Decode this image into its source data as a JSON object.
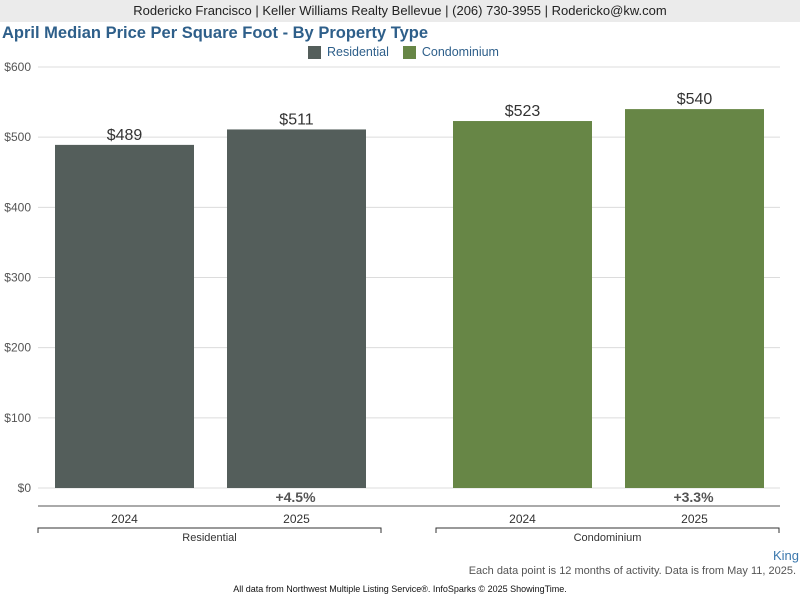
{
  "header": {
    "contact_line": "Rodericko Francisco | Keller Williams Realty Bellevue | (206) 730-3955 | Rodericko@kw.com"
  },
  "chart_data": {
    "type": "bar",
    "title": "April Median Price Per Square Foot - By Property Type",
    "ylim": [
      0,
      600
    ],
    "y_ticks": [
      0,
      100,
      200,
      300,
      400,
      500,
      600
    ],
    "y_tick_labels": [
      "$0",
      "$100",
      "$200",
      "$300",
      "$400",
      "$500",
      "$600"
    ],
    "grid": true,
    "legend_position": "top",
    "legend": [
      {
        "name": "Residential",
        "color": "#545e5b"
      },
      {
        "name": "Condominium",
        "color": "#678646"
      }
    ],
    "groups": [
      {
        "name": "Residential",
        "color": "#545e5b",
        "categories": [
          "2024",
          "2025"
        ],
        "values": [
          489,
          511
        ],
        "value_labels": [
          "$489",
          "$511"
        ],
        "change_label": "+4.5%"
      },
      {
        "name": "Condominium",
        "color": "#678646",
        "categories": [
          "2024",
          "2025"
        ],
        "values": [
          523,
          540
        ],
        "value_labels": [
          "$523",
          "$540"
        ],
        "change_label": "+3.3%"
      }
    ]
  },
  "footer": {
    "region": "King",
    "note": "Each data point is 12 months of activity. Data is from May 11, 2025.",
    "source": "All data from Northwest Multiple Listing Service®. InfoSparks © 2025 ShowingTime."
  }
}
